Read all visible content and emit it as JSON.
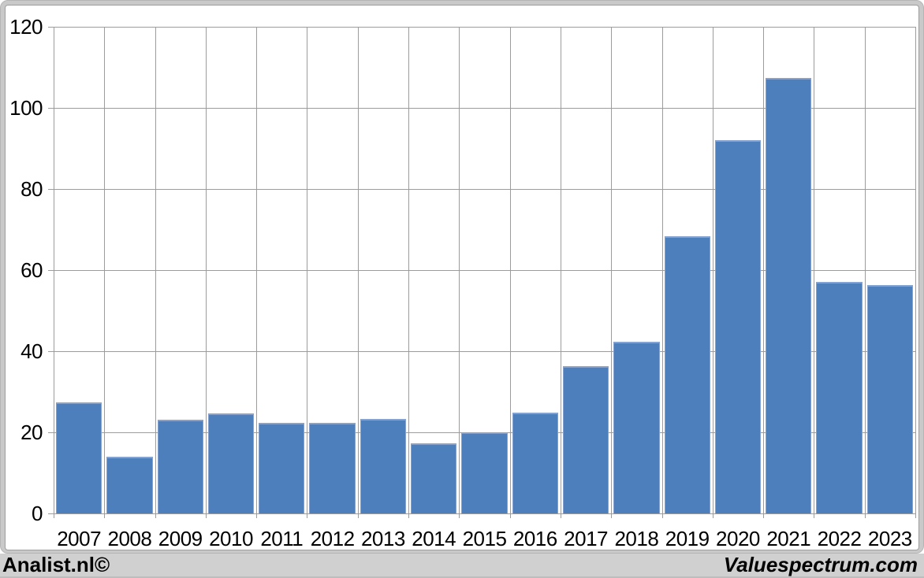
{
  "chart_data": {
    "type": "bar",
    "title": "",
    "xlabel": "",
    "ylabel": "",
    "categories": [
      "2007",
      "2008",
      "2009",
      "2010",
      "2011",
      "2012",
      "2013",
      "2014",
      "2015",
      "2016",
      "2017",
      "2018",
      "2019",
      "2020",
      "2021",
      "2022",
      "2023"
    ],
    "values": [
      27.3,
      14,
      23.2,
      24.7,
      22.4,
      22.4,
      23.3,
      17.3,
      20,
      24.8,
      36.3,
      42.4,
      68.3,
      92.1,
      107.4,
      57,
      56.4
    ],
    "ylim": [
      0,
      120
    ],
    "yticks": [
      0,
      20,
      40,
      60,
      80,
      100,
      120
    ],
    "grid": "both",
    "legend": "none",
    "colors": {
      "bar_fill": "#4d7fbd",
      "bar_border": "#84a3d0",
      "gridline": "#9c9c9c",
      "tick": "#9c9c9c",
      "axis_text": "#000000",
      "frame_band": "#c9c9c9",
      "footer_strip": "#d0d0d0",
      "plot_background": "#ffffff"
    }
  },
  "footer": {
    "left_credit": "Analist.nl©",
    "right_credit": "Valuespectrum.com"
  }
}
